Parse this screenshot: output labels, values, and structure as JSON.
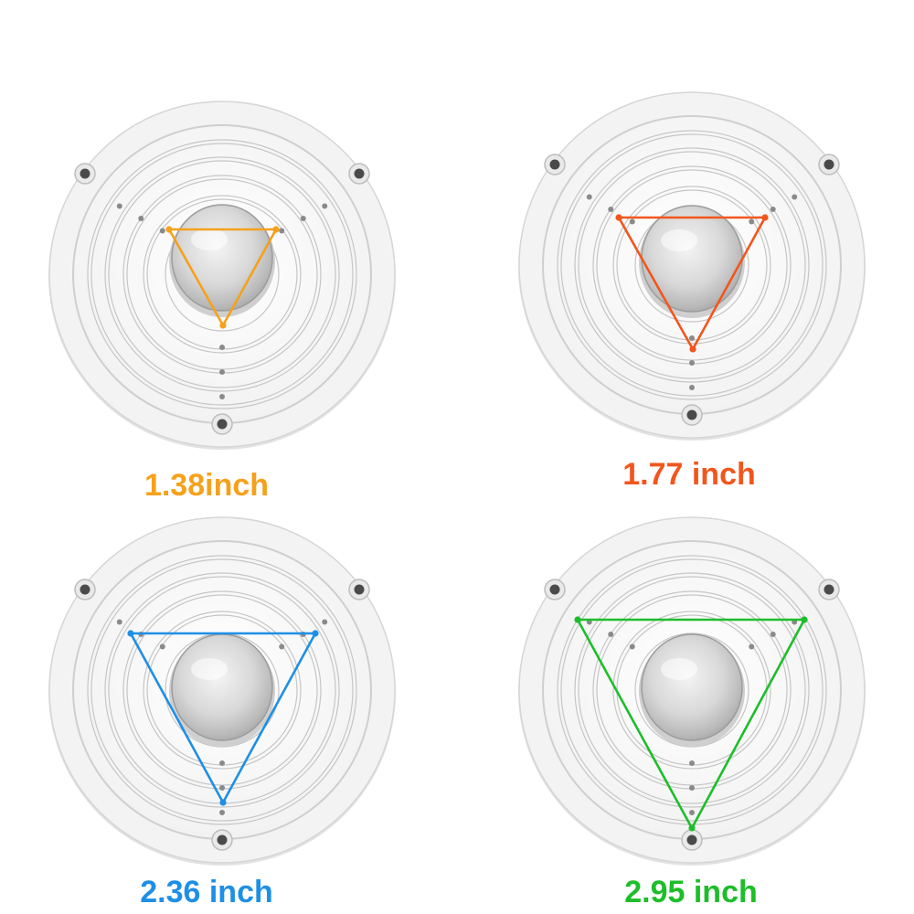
{
  "mounts": [
    {
      "label": "1.38inch",
      "color": "#F5A11C",
      "icon": "mounting-plate-icon"
    },
    {
      "label": "1.77 inch",
      "color": "#F2561D",
      "icon": "mounting-plate-icon"
    },
    {
      "label": "2.36 inch",
      "color": "#1E8FE6",
      "icon": "mounting-plate-icon"
    },
    {
      "label": "2.95 inch",
      "color": "#1DBE2A",
      "icon": "mounting-plate-icon"
    }
  ]
}
